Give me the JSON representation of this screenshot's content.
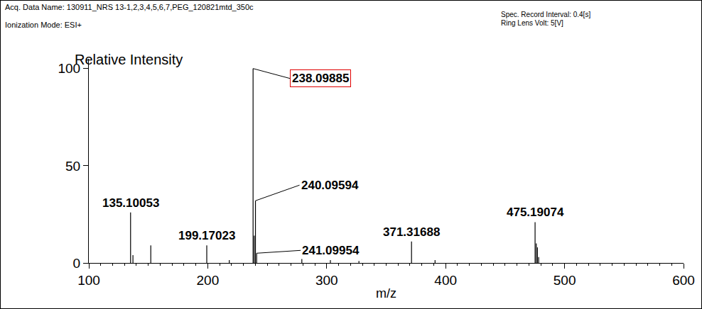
{
  "chart_data": {
    "type": "spectrum",
    "header_left": [
      "Acq. Data Name: 130911_NRS 13-1,2,3,4,5,6,7,PEG_120821mtd_350c",
      "Ionization Mode: ESI+"
    ],
    "header_right": [
      "Spec. Record Interval: 0.4[s]",
      "Ring Lens Volt: 5[V]"
    ],
    "y_label": "Relative Intensity",
    "x_label": "m/z",
    "x": [
      135.10053,
      137.1,
      152.1,
      199.17023,
      218.1,
      238.09885,
      239.1,
      240.09594,
      241.09954,
      279.1,
      303.1,
      327.1,
      371.31688,
      391.1,
      475.19074,
      476.2,
      477.2,
      478.2
    ],
    "values": [
      26,
      4,
      9,
      9,
      1.5,
      100,
      14,
      32,
      5,
      2,
      1.5,
      1,
      11,
      1.5,
      21,
      10,
      8,
      3
    ],
    "color": "#000000",
    "xlim": [
      100,
      600
    ],
    "xticks": [
      100,
      200,
      300,
      400,
      500,
      600
    ],
    "ylim": [
      0,
      105
    ],
    "yticks": [
      0,
      50,
      100
    ],
    "grid": false,
    "annotations": [
      {
        "text": "238.09885",
        "x": 238.09885,
        "y": 100,
        "color": "#e00000"
      },
      {
        "text": "240.09594",
        "x": 240.09594,
        "y": 32
      },
      {
        "text": "241.09954",
        "x": 241.09954,
        "y": 5
      },
      {
        "text": "135.10053",
        "x": 135.10053,
        "y": 26
      },
      {
        "text": "199.17023",
        "x": 199.17023,
        "y": 9
      },
      {
        "text": "371.31688",
        "x": 371.31688,
        "y": 11
      },
      {
        "text": "475.19074",
        "x": 475.19074,
        "y": 21
      }
    ]
  }
}
